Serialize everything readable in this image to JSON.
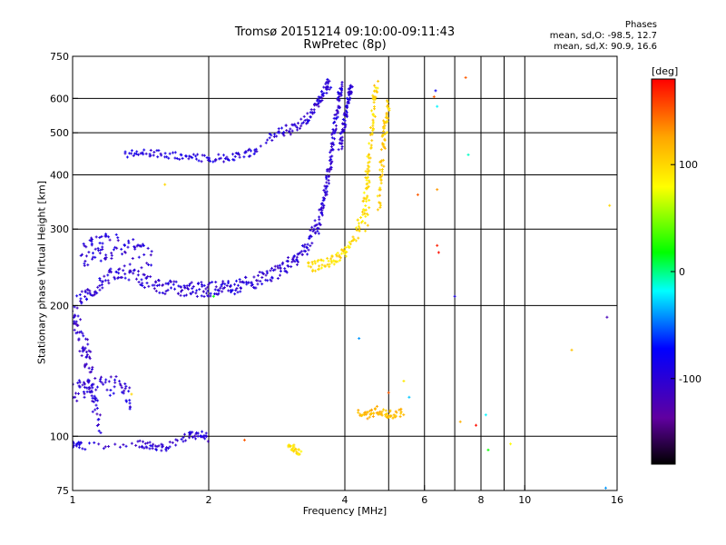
{
  "header": {
    "title_line1": "Tromsø 20151214 09:10:00-09:11:43",
    "title_line2": "RwPretec (8p)"
  },
  "stats": {
    "heading": "Phases",
    "line_o": "mean, sd,O: -98.5, 12.7",
    "line_x": "mean, sd,X:  90.9, 16.6"
  },
  "chart_data": {
    "type": "scatter",
    "title": "Tromsø 20151214 09:10:00-09:11:43",
    "subtitle": "RwPretec (8p)",
    "xlabel": "Frequency [MHz]",
    "ylabel": "Stationary phase Virtual Height [km]",
    "x_scale": "log",
    "y_scale": "log",
    "xlim": [
      1,
      16
    ],
    "ylim": [
      75,
      750
    ],
    "x_ticks": [
      1,
      2,
      4,
      6,
      8,
      10,
      16
    ],
    "x_tick_labels": [
      "1",
      "2",
      "4",
      "6",
      "8",
      "10",
      "16"
    ],
    "y_ticks": [
      75,
      100,
      200,
      300,
      400,
      500,
      600,
      750
    ],
    "y_tick_labels": [
      "75",
      "100",
      "200",
      "300",
      "400",
      "500",
      "600",
      "750"
    ],
    "x_gridlines": [
      2,
      4,
      5,
      6,
      7,
      8,
      9,
      10
    ],
    "y_gridlines": [
      100,
      200,
      300,
      400,
      500,
      600
    ],
    "grid": true,
    "colorbar": {
      "label": "[deg]",
      "range": [
        -180,
        180
      ],
      "ticks": [
        -100,
        0,
        100
      ],
      "tick_labels": [
        "-100",
        "0",
        "100"
      ],
      "colors": [
        "#000000",
        "#6000a0",
        "#0000ff",
        "#00ffff",
        "#00ff00",
        "#ffff00",
        "#ffa500",
        "#ff0000"
      ]
    },
    "series": [
      {
        "traces": [
          {
            "x": [
              1.03,
              1.08,
              1.15,
              1.22,
              1.3,
              1.4,
              1.5,
              1.6,
              1.7,
              1.8,
              1.9,
              2.0,
              2.1,
              2.2,
              2.3,
              2.45,
              2.6,
              2.75,
              2.9,
              3.05,
              3.2,
              3.35,
              3.45,
              3.55
            ],
            "y": [
              205,
              212,
              225,
              235,
              240,
              232,
              225,
              221,
              219,
              218,
              218,
              218,
              219,
              220,
              222,
              225,
              230,
              236,
              243,
              252,
              265,
              282,
              300,
              322
            ],
            "phase": -100,
            "spread_y": 0.04
          },
          {
            "x": [
              1.05,
              1.1,
              1.15,
              1.2,
              1.3,
              1.4,
              1.5
            ],
            "y": [
              260,
              268,
              272,
              275,
              270,
              262,
              255
            ],
            "phase": -100,
            "spread_y": 0.07
          },
          {
            "x": [
              3.55,
              3.6,
              3.65,
              3.7,
              3.75,
              3.8,
              3.85,
              3.9,
              3.95
            ],
            "y": [
              322,
              350,
              385,
              420,
              465,
              510,
              560,
              610,
              650
            ],
            "phase": -100,
            "spread_y": 0.02
          },
          {
            "x": [
              3.9,
              3.95,
              4.0,
              4.05,
              4.1,
              4.15
            ],
            "y": [
              460,
              500,
              540,
              580,
              610,
              640
            ],
            "phase": -100,
            "spread_y": 0.02
          },
          {
            "x": [
              2.7,
              2.9,
              3.1,
              3.3,
              3.45,
              3.55,
              3.65,
              3.7
            ],
            "y": [
              480,
              500,
              515,
              540,
              575,
              610,
              640,
              655
            ],
            "phase": -100,
            "spread_y": 0.03
          },
          {
            "x": [
              1.3,
              1.45,
              1.6,
              1.8,
              2.0,
              2.2,
              2.4,
              2.6
            ],
            "y": [
              448,
              450,
              445,
              440,
              436,
              438,
              445,
              460
            ],
            "phase": -95,
            "spread_y": 0.02
          },
          {
            "x": [
              1.0,
              1.02,
              1.05,
              1.08,
              1.1,
              1.12,
              1.15
            ],
            "y": [
              195,
              180,
              165,
              150,
              135,
              120,
              105
            ],
            "phase": -105,
            "spread_y": 0.1
          },
          {
            "x": [
              1.0,
              1.05,
              1.1,
              1.2,
              1.3,
              1.35
            ],
            "y": [
              125,
              130,
              128,
              132,
              128,
              120
            ],
            "phase": -100,
            "spread_y": 0.06
          },
          {
            "x": [
              1.0,
              1.05,
              1.4,
              1.5,
              1.6,
              1.8,
              1.9,
              2.0
            ],
            "y": [
              96,
              95,
              96,
              95,
              94,
              100,
              101,
              99
            ],
            "phase": -100,
            "spread_y": 0.02
          },
          {
            "x": [
              3.3,
              3.5,
              3.7,
              3.85,
              4.0,
              4.2,
              4.35,
              4.45,
              4.5
            ],
            "y": [
              245,
              248,
              252,
              258,
              268,
              285,
              315,
              360,
              420
            ],
            "phase": 95,
            "spread_y": 0.03
          },
          {
            "x": [
              4.45,
              4.5,
              4.55,
              4.6,
              4.65,
              4.7
            ],
            "y": [
              300,
              380,
              460,
              540,
              600,
              640
            ],
            "phase": 100,
            "spread_y": 0.04
          },
          {
            "x": [
              4.75,
              4.8,
              4.85,
              4.9,
              4.95,
              5.0
            ],
            "y": [
              330,
              390,
              450,
              510,
              550,
              590
            ],
            "phase": 105,
            "spread_y": 0.04
          },
          {
            "x": [
              3.0,
              3.1,
              3.2
            ],
            "y": [
              95,
              93,
              92
            ],
            "phase": 95,
            "spread_y": 0.02
          },
          {
            "x": [
              4.3,
              4.5,
              4.7,
              4.9,
              5.1,
              5.4
            ],
            "y": [
              114,
              112,
              115,
              113,
              112,
              114
            ],
            "phase": 115,
            "spread_y": 0.02
          }
        ],
        "points": [
          {
            "x": 7.4,
            "y": 670,
            "phase": 150
          },
          {
            "x": 6.35,
            "y": 625,
            "phase": -80
          },
          {
            "x": 6.3,
            "y": 605,
            "phase": 150
          },
          {
            "x": 6.4,
            "y": 575,
            "phase": -20
          },
          {
            "x": 7.5,
            "y": 445,
            "phase": -10
          },
          {
            "x": 6.4,
            "y": 370,
            "phase": 130
          },
          {
            "x": 5.8,
            "y": 360,
            "phase": 150
          },
          {
            "x": 6.4,
            "y": 275,
            "phase": 170
          },
          {
            "x": 6.45,
            "y": 265,
            "phase": 175
          },
          {
            "x": 7.0,
            "y": 210,
            "phase": -90
          },
          {
            "x": 15.2,
            "y": 188,
            "phase": -120
          },
          {
            "x": 15.4,
            "y": 340,
            "phase": 100
          },
          {
            "x": 12.7,
            "y": 158,
            "phase": 110
          },
          {
            "x": 4.3,
            "y": 168,
            "phase": -40
          },
          {
            "x": 5.4,
            "y": 134,
            "phase": 90
          },
          {
            "x": 5.0,
            "y": 126,
            "phase": 150
          },
          {
            "x": 5.55,
            "y": 123,
            "phase": -30
          },
          {
            "x": 8.2,
            "y": 112,
            "phase": -20
          },
          {
            "x": 7.2,
            "y": 108,
            "phase": 120
          },
          {
            "x": 7.8,
            "y": 106,
            "phase": 175
          },
          {
            "x": 8.3,
            "y": 93,
            "phase": 20
          },
          {
            "x": 9.3,
            "y": 96,
            "phase": 80
          },
          {
            "x": 15.1,
            "y": 76,
            "phase": -40
          },
          {
            "x": 1.6,
            "y": 380,
            "phase": 100
          },
          {
            "x": 1.35,
            "y": 125,
            "phase": 100
          },
          {
            "x": 2.05,
            "y": 210,
            "phase": 20
          },
          {
            "x": 2.4,
            "y": 98,
            "phase": 150
          }
        ]
      }
    ]
  }
}
